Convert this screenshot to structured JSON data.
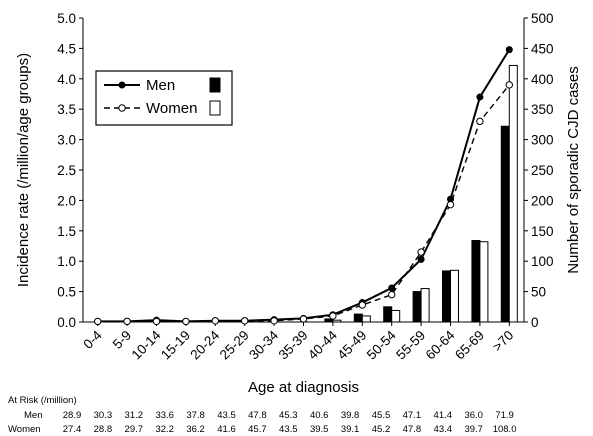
{
  "chart_data": {
    "type": "bar+line",
    "categories": [
      "0-4",
      "5-9",
      "10-14",
      "15-19",
      "20-24",
      "25-29",
      "30-34",
      "35-39",
      "40-44",
      "45-49",
      "50-54",
      "55-59",
      "60-64",
      "65-69",
      ">70"
    ],
    "xlabel": "Age at diagnosis",
    "ylabel_left": "Incidence rate (/million/age groups)",
    "ylabel_right": "Number of sporadic CJD cases",
    "ylim_left": [
      0,
      5.0
    ],
    "ylim_right": [
      0,
      500
    ],
    "yticks_left": [
      "0.0",
      "0.5",
      "1.0",
      "1.5",
      "2.0",
      "2.5",
      "3.0",
      "3.5",
      "4.0",
      "4.5",
      "5.0"
    ],
    "yticks_right": [
      "0",
      "50",
      "100",
      "150",
      "200",
      "250",
      "300",
      "350",
      "400",
      "450",
      "500"
    ],
    "legend": {
      "placement": "top-left",
      "men_label": "Men",
      "women_label": "Women"
    },
    "lines": [
      {
        "name": "Men",
        "axis": "left",
        "style": "solid",
        "marker": "filled-circle",
        "values": [
          0.01,
          0.01,
          0.03,
          0.01,
          0.02,
          0.02,
          0.04,
          0.06,
          0.12,
          0.32,
          0.56,
          1.03,
          2.02,
          3.7,
          4.48
        ]
      },
      {
        "name": "Women",
        "axis": "left",
        "style": "dashed",
        "marker": "open-circle",
        "values": [
          0.01,
          0.01,
          0.01,
          0.01,
          0.02,
          0.02,
          0.02,
          0.05,
          0.1,
          0.28,
          0.45,
          1.15,
          1.93,
          3.3,
          3.9
        ]
      }
    ],
    "bars": [
      {
        "name": "Men",
        "axis": "right",
        "fill": "#000000",
        "values": [
          0,
          0,
          0,
          0,
          0,
          0,
          0,
          0,
          5,
          13,
          25,
          50,
          84,
          134,
          322
        ]
      },
      {
        "name": "Women",
        "axis": "right",
        "fill": "#ffffff",
        "values": [
          0,
          0,
          0,
          0,
          0,
          0,
          0,
          0,
          3,
          10,
          19,
          55,
          85,
          132,
          422
        ]
      }
    ],
    "at_risk": {
      "title": "At Risk (/million)",
      "men_label": "Men",
      "women_label": "Women",
      "men": [
        "28.9",
        "30.3",
        "31.2",
        "33.6",
        "37.8",
        "43.5",
        "47.8",
        "45.3",
        "40.6",
        "39.8",
        "45.5",
        "47.1",
        "41.4",
        "36.0",
        "71.9"
      ],
      "women": [
        "27.4",
        "28.8",
        "29.7",
        "32.2",
        "36.2",
        "41.6",
        "45.7",
        "43.5",
        "39.5",
        "39.1",
        "45.2",
        "47.8",
        "43.4",
        "39.7",
        "108.0"
      ]
    }
  }
}
